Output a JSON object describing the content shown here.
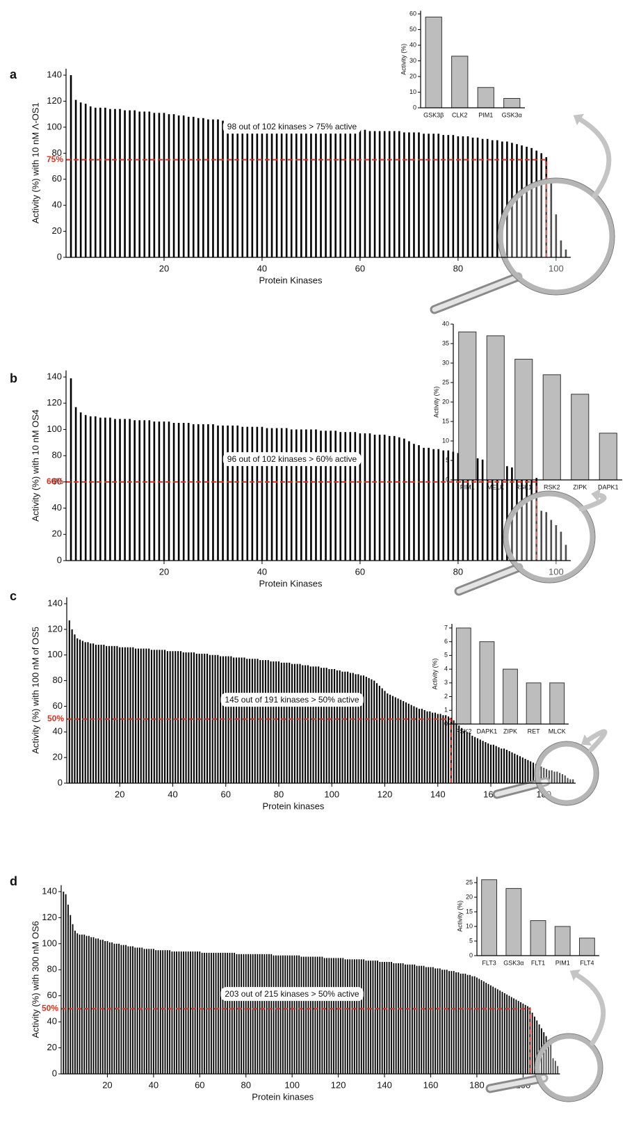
{
  "chart_data": [
    {
      "type": "bar",
      "panel_label": "a",
      "ylabel": "Activity (%) with 10 nM Λ-OS1",
      "xlabel": "Protein Kinases",
      "values": [
        140,
        121,
        119,
        118,
        116,
        115,
        115,
        115,
        114,
        114,
        114,
        113,
        113,
        113,
        112,
        112,
        112,
        111,
        111,
        111,
        110,
        110,
        109,
        109,
        108,
        108,
        107,
        107,
        106,
        106,
        106,
        105,
        105,
        105,
        104,
        104,
        104,
        103,
        103,
        103,
        102,
        102,
        102,
        101,
        101,
        101,
        101,
        100,
        100,
        100,
        100,
        99,
        99,
        99,
        99,
        98,
        98,
        98,
        98,
        98,
        98,
        97,
        97,
        97,
        97,
        97,
        97,
        97,
        96,
        96,
        96,
        96,
        95,
        95,
        95,
        95,
        94,
        94,
        94,
        93,
        93,
        93,
        92,
        92,
        91,
        91,
        90,
        90,
        89,
        89,
        88,
        87,
        86,
        85,
        84,
        82,
        80,
        77,
        58,
        33,
        13,
        6
      ],
      "color": "#000000",
      "xlim": [
        0,
        103
      ],
      "xticks": [
        20,
        40,
        60,
        80,
        100
      ],
      "ylim": [
        0,
        145
      ],
      "yticks": [
        0,
        20,
        40,
        60,
        80,
        100,
        120,
        140
      ],
      "threshold": 75,
      "threshold_label": "75%",
      "cutoff": 98,
      "annotation": "98 out of 102 kinases > 75% active"
    },
    {
      "type": "bar",
      "ylabel": "Activity (%)",
      "categories": [
        "GSK3β",
        "CLK2",
        "PIM1",
        "GSK3α"
      ],
      "values": [
        58,
        33,
        13,
        6
      ],
      "color": "#bdbdbd",
      "ylim": [
        0,
        62
      ],
      "yticks": [
        0,
        10,
        20,
        30,
        40,
        50,
        60
      ]
    },
    {
      "type": "bar",
      "panel_label": "b",
      "ylabel": "Activity (%) with 10 nM OS4",
      "xlabel": "Protein Kinases",
      "values": [
        139,
        117,
        113,
        111,
        110,
        110,
        109,
        109,
        109,
        108,
        108,
        108,
        108,
        107,
        107,
        107,
        107,
        106,
        106,
        106,
        106,
        105,
        105,
        105,
        105,
        104,
        104,
        104,
        104,
        104,
        103,
        103,
        103,
        103,
        103,
        102,
        102,
        102,
        102,
        102,
        101,
        101,
        101,
        101,
        101,
        100,
        100,
        100,
        100,
        100,
        100,
        99,
        99,
        99,
        99,
        98,
        98,
        98,
        98,
        97,
        97,
        97,
        96,
        96,
        96,
        95,
        95,
        94,
        93,
        91,
        89,
        88,
        86,
        86,
        85,
        85,
        84,
        84,
        83,
        82,
        81,
        80,
        79,
        78,
        77,
        76,
        75,
        74,
        73,
        72,
        71,
        70,
        69,
        68,
        66,
        63,
        38,
        37,
        31,
        27,
        22,
        12
      ],
      "color": "#000000",
      "xlim": [
        0,
        103
      ],
      "xticks": [
        20,
        40,
        60,
        80,
        100
      ],
      "ylim": [
        0,
        145
      ],
      "yticks": [
        0,
        20,
        40,
        60,
        80,
        100,
        120,
        140
      ],
      "threshold": 60,
      "threshold_label": "60%",
      "cutoff": 96,
      "annotation": "96 out of 102 kinases > 60% active"
    },
    {
      "type": "bar",
      "ylabel": "Activity (%)",
      "categories": [
        "PIM1",
        "MELK",
        "RSK1",
        "RSK2",
        "ZIPK",
        "DAPK1"
      ],
      "values": [
        38,
        37,
        31,
        27,
        22,
        12
      ],
      "color": "#bdbdbd",
      "ylim": [
        0,
        40
      ],
      "yticks": [
        0,
        5,
        10,
        15,
        20,
        25,
        30,
        35,
        40
      ]
    },
    {
      "type": "bar",
      "panel_label": "c",
      "ylabel": "Activity (%) with 100 nM of OS5",
      "xlabel": "Protein kinases",
      "values": [
        127,
        120,
        116,
        113,
        112,
        111,
        110,
        110,
        109,
        109,
        108,
        108,
        108,
        108,
        107,
        107,
        107,
        107,
        107,
        106,
        106,
        106,
        106,
        106,
        106,
        105,
        105,
        105,
        105,
        105,
        105,
        104,
        104,
        104,
        104,
        104,
        104,
        103,
        103,
        103,
        103,
        103,
        103,
        102,
        102,
        102,
        102,
        102,
        101,
        101,
        101,
        101,
        101,
        100,
        100,
        100,
        100,
        99,
        99,
        99,
        99,
        99,
        98,
        98,
        98,
        98,
        98,
        97,
        97,
        97,
        97,
        97,
        96,
        96,
        96,
        96,
        95,
        95,
        95,
        95,
        94,
        94,
        94,
        94,
        93,
        93,
        93,
        93,
        92,
        92,
        92,
        91,
        91,
        91,
        91,
        90,
        90,
        90,
        89,
        89,
        89,
        88,
        88,
        87,
        87,
        87,
        86,
        86,
        85,
        85,
        84,
        84,
        83,
        82,
        81,
        80,
        78,
        76,
        74,
        72,
        70,
        69,
        68,
        67,
        66,
        65,
        64,
        63,
        62,
        61,
        60,
        59,
        58,
        58,
        57,
        56,
        56,
        55,
        55,
        54,
        54,
        53,
        53,
        52,
        51,
        49,
        47,
        45,
        43,
        41,
        40,
        39,
        37,
        36,
        35,
        34,
        33,
        32,
        31,
        30,
        30,
        29,
        28,
        27,
        27,
        26,
        25,
        24,
        23,
        22,
        21,
        20,
        19,
        18,
        17,
        16,
        15,
        14,
        13,
        12,
        11,
        10,
        10,
        9,
        9,
        8,
        7,
        6,
        4,
        3,
        3
      ],
      "color": "#000000",
      "xlim": [
        0,
        192
      ],
      "xticks": [
        20,
        40,
        60,
        80,
        100,
        120,
        140,
        160,
        180
      ],
      "ylim": [
        0,
        145
      ],
      "yticks": [
        0,
        20,
        40,
        60,
        80,
        100,
        120,
        140
      ],
      "threshold": 50,
      "threshold_label": "50%",
      "cutoff": 145,
      "annotation": "145 out of 191 kinases > 50% active"
    },
    {
      "type": "bar",
      "ylabel": "Activity (%)",
      "categories": [
        "RSK2",
        "DAPK1",
        "ZIPK",
        "RET",
        "MLCK"
      ],
      "values": [
        7,
        6,
        4,
        3,
        3
      ],
      "color": "#bdbdbd",
      "ylim": [
        0,
        7.3
      ],
      "yticks": [
        0,
        1,
        2,
        3,
        4,
        5,
        6,
        7
      ]
    },
    {
      "type": "bar",
      "panel_label": "d",
      "ylabel": "Activity (%) with 300 nM OS6",
      "xlabel": "Protein kinases",
      "values": [
        140,
        138,
        130,
        122,
        115,
        110,
        108,
        107,
        107,
        107,
        106,
        106,
        105,
        105,
        104,
        104,
        103,
        103,
        102,
        102,
        101,
        101,
        100,
        100,
        100,
        99,
        99,
        99,
        98,
        98,
        98,
        97,
        97,
        97,
        97,
        96,
        96,
        96,
        96,
        96,
        95,
        95,
        95,
        95,
        95,
        95,
        95,
        94,
        94,
        94,
        94,
        94,
        94,
        94,
        94,
        94,
        94,
        94,
        94,
        94,
        93,
        93,
        93,
        93,
        93,
        93,
        93,
        93,
        93,
        93,
        93,
        93,
        93,
        93,
        93,
        92,
        92,
        92,
        92,
        92,
        92,
        92,
        92,
        92,
        92,
        92,
        92,
        92,
        92,
        92,
        92,
        91,
        91,
        91,
        91,
        91,
        91,
        91,
        91,
        91,
        91,
        91,
        91,
        90,
        90,
        90,
        90,
        90,
        90,
        90,
        90,
        90,
        90,
        89,
        89,
        89,
        89,
        89,
        89,
        89,
        89,
        89,
        88,
        88,
        88,
        88,
        88,
        88,
        88,
        88,
        88,
        87,
        87,
        87,
        87,
        87,
        87,
        86,
        86,
        86,
        86,
        86,
        86,
        85,
        85,
        85,
        85,
        85,
        84,
        84,
        84,
        84,
        84,
        83,
        83,
        83,
        83,
        82,
        82,
        82,
        82,
        81,
        81,
        81,
        80,
        80,
        80,
        79,
        79,
        79,
        78,
        78,
        77,
        77,
        77,
        76,
        76,
        75,
        75,
        74,
        73,
        72,
        71,
        70,
        69,
        68,
        67,
        66,
        65,
        64,
        63,
        62,
        61,
        60,
        59,
        58,
        57,
        56,
        55,
        54,
        53,
        52,
        51,
        47,
        44,
        41,
        38,
        35,
        32,
        29,
        26,
        23,
        12,
        10,
        6
      ],
      "color": "#000000",
      "xlim": [
        0,
        216
      ],
      "xticks": [
        20,
        40,
        60,
        80,
        100,
        120,
        140,
        160,
        180,
        200
      ],
      "ylim": [
        0,
        145
      ],
      "yticks": [
        0,
        20,
        40,
        60,
        80,
        100,
        120,
        140
      ],
      "threshold": 50,
      "threshold_label": "50%",
      "cutoff": 203,
      "annotation": "203 out of 215 kinases > 50% active"
    },
    {
      "type": "bar",
      "ylabel": "Activity (%)",
      "categories": [
        "FLT3",
        "GSK3α",
        "FLT1",
        "PIM1",
        "FLT4"
      ],
      "values": [
        26,
        23,
        12,
        10,
        6
      ],
      "color": "#bdbdbd",
      "ylim": [
        0,
        27
      ],
      "yticks": [
        0,
        5,
        10,
        15,
        20,
        25
      ]
    }
  ]
}
